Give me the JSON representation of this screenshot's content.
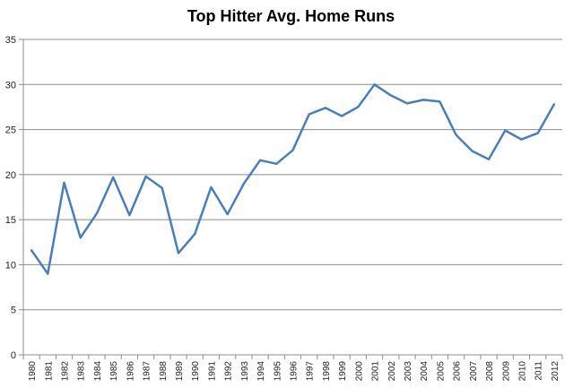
{
  "chart_data": {
    "type": "line",
    "title": "Top Hitter Avg. Home Runs",
    "xlabel": "",
    "ylabel": "",
    "categories": [
      "1980",
      "1981",
      "1982",
      "1983",
      "1984",
      "1985",
      "1986",
      "1987",
      "1988",
      "1989",
      "1990",
      "1991",
      "1992",
      "1993",
      "1994",
      "1995",
      "1996",
      "1997",
      "1998",
      "1999",
      "2000",
      "2001",
      "2002",
      "2003",
      "2004",
      "2005",
      "2006",
      "2007",
      "2008",
      "2009",
      "2010",
      "2011",
      "2012"
    ],
    "series": [
      {
        "values": [
          11.6,
          9.0,
          19.1,
          13.0,
          15.7,
          19.7,
          15.5,
          19.8,
          18.5,
          11.3,
          13.4,
          18.6,
          15.6,
          19.0,
          21.6,
          21.2,
          22.7,
          26.7,
          27.4,
          26.5,
          27.5,
          30.0,
          28.8,
          27.9,
          28.3,
          28.1,
          24.4,
          22.6,
          21.7,
          24.9,
          23.9,
          24.6,
          27.8
        ],
        "color": "#4a7ebb"
      }
    ],
    "ylim": [
      0,
      35
    ],
    "yticks": [
      "0",
      "5",
      "10",
      "15",
      "20",
      "25",
      "30",
      "35"
    ],
    "grid": true,
    "legend": "none"
  }
}
